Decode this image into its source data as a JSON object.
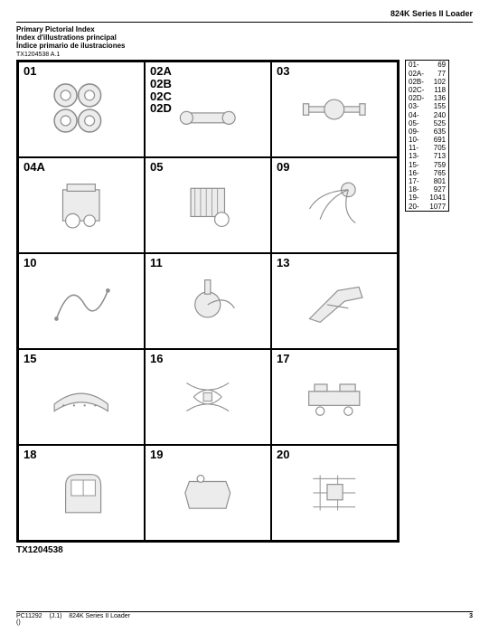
{
  "header": {
    "product": "824K Series II Loader"
  },
  "titles": {
    "en": "Primary Pictorial Index",
    "fr": "Index d'illustrations principal",
    "es": "Índice primario de ilustraciones"
  },
  "figure_ref_top": "TX1204538 A.1",
  "figure_ref_bottom": "TX1204538",
  "cells": [
    {
      "labels": [
        "01"
      ],
      "kind": "wheels"
    },
    {
      "labels": [
        "02A",
        "02B",
        "02C",
        "02D"
      ],
      "kind": "driveline"
    },
    {
      "labels": [
        "03"
      ],
      "kind": "axle"
    },
    {
      "labels": [
        "04A"
      ],
      "kind": "engine"
    },
    {
      "labels": [
        "05"
      ],
      "kind": "cooling"
    },
    {
      "labels": [
        "09"
      ],
      "kind": "hydraulics"
    },
    {
      "labels": [
        "10"
      ],
      "kind": "hose"
    },
    {
      "labels": [
        "11"
      ],
      "kind": "brake"
    },
    {
      "labels": [
        "13"
      ],
      "kind": "loader-arm"
    },
    {
      "labels": [
        "15"
      ],
      "kind": "hood"
    },
    {
      "labels": [
        "16"
      ],
      "kind": "harness"
    },
    {
      "labels": [
        "17"
      ],
      "kind": "frame"
    },
    {
      "labels": [
        "18"
      ],
      "kind": "cab"
    },
    {
      "labels": [
        "19"
      ],
      "kind": "tank"
    },
    {
      "labels": [
        "20"
      ],
      "kind": "misc"
    }
  ],
  "index": [
    {
      "sec": "01-",
      "pg": "69"
    },
    {
      "sec": "02A-",
      "pg": "77"
    },
    {
      "sec": "02B-",
      "pg": "102"
    },
    {
      "sec": "02C-",
      "pg": "118"
    },
    {
      "sec": "02D-",
      "pg": "136"
    },
    {
      "sec": "03-",
      "pg": "155"
    },
    {
      "sec": "04-",
      "pg": "240"
    },
    {
      "sec": "05-",
      "pg": "525"
    },
    {
      "sec": "09-",
      "pg": "635"
    },
    {
      "sec": "10-",
      "pg": "691"
    },
    {
      "sec": "11-",
      "pg": "705"
    },
    {
      "sec": "13-",
      "pg": "713"
    },
    {
      "sec": "15-",
      "pg": "759"
    },
    {
      "sec": "16-",
      "pg": "765"
    },
    {
      "sec": "17-",
      "pg": "801"
    },
    {
      "sec": "18-",
      "pg": "927"
    },
    {
      "sec": "19-",
      "pg": "1041"
    },
    {
      "sec": "20-",
      "pg": "1077"
    }
  ],
  "footer": {
    "doc": "PC11292",
    "rev": "(J.1)",
    "product": "824K Series II Loader",
    "page": "3",
    "mark": "()"
  },
  "colors": {
    "text": "#000000",
    "bg": "#ffffff",
    "border": "#000000",
    "thumb_stroke": "#333333",
    "thumb_fill": "#dddddd"
  }
}
